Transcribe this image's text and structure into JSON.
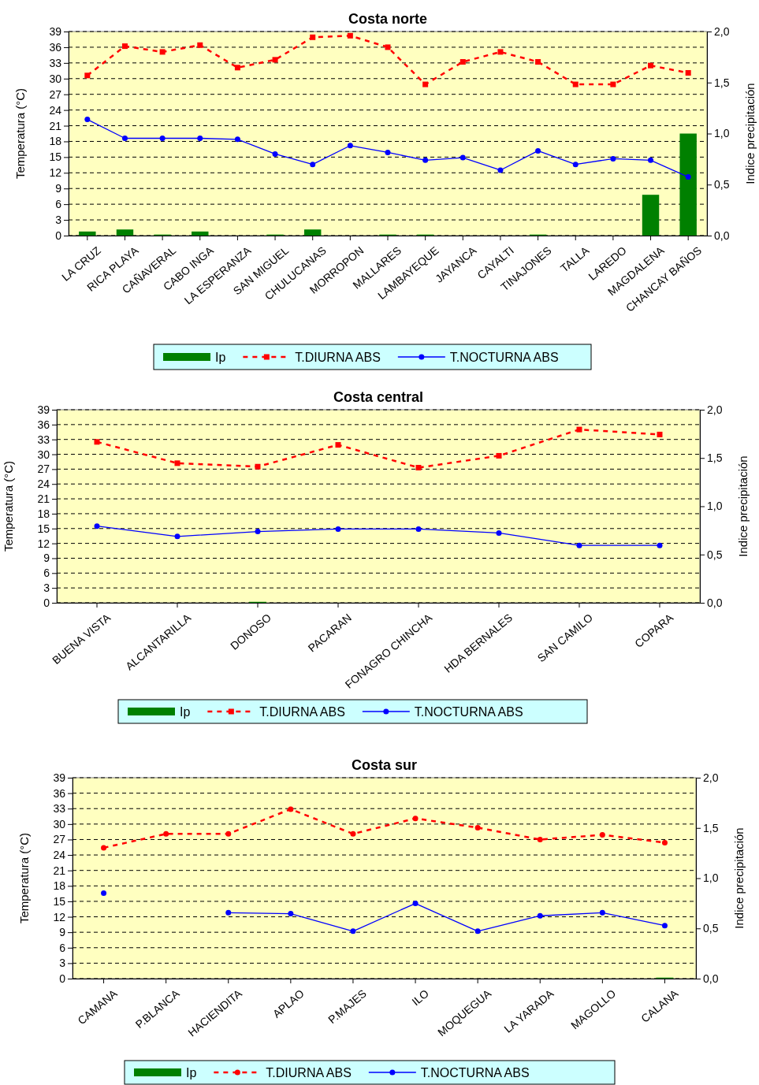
{
  "chart_data": [
    {
      "type": "line",
      "title": "Costa norte",
      "ylabel": "Temperatura (°C)",
      "y2label": "Indice precipitación",
      "categories": [
        "LA CRUZ",
        "RICA PLAYA",
        "CAÑAVERAL",
        "CABO INGA",
        "LA ESPERANZA",
        "SAN MIGUEL",
        "CHULUCANAS",
        "MORROPON",
        "MALLARES",
        "LAMBAYEQUE",
        "JAYANCA",
        "CAYALTI",
        "TINAJONES",
        "TALLA",
        "LAREDO",
        "MAGDALENA",
        "CHANCAY BAÑOS"
      ],
      "series": [
        {
          "name": "Ip",
          "type": "bar",
          "axis": "y2",
          "color": "#008000",
          "values": [
            0.04,
            0.06,
            0.01,
            0.04,
            0,
            0.01,
            0.06,
            0,
            0.01,
            0.01,
            0,
            0,
            0.01,
            0,
            0,
            0.4,
            1.0
          ]
        },
        {
          "name": "T.DIURNA ABS",
          "color": "#ff0000",
          "marker": "square",
          "line_style": "dashed",
          "values": [
            30.6,
            36.2,
            35.1,
            36.4,
            32.1,
            33.6,
            37.9,
            38.2,
            36,
            28.9,
            33.2,
            35.1,
            33.2,
            28.9,
            28.9,
            32.5,
            31.1
          ]
        },
        {
          "name": "T.NOCTURNA ABS",
          "color": "#0000ff",
          "marker": "circle",
          "line_style": "solid",
          "values": [
            22.2,
            18.6,
            18.6,
            18.6,
            18.4,
            15.6,
            13.6,
            17.2,
            15.9,
            14.4,
            14.9,
            12.5,
            16.2,
            13.6,
            14.7,
            14.4,
            11.2
          ]
        }
      ],
      "ylim": [
        0,
        39
      ],
      "yticks": [
        0,
        3,
        6,
        9,
        12,
        15,
        18,
        21,
        24,
        27,
        30,
        33,
        36,
        39
      ],
      "y2lim": [
        0,
        2
      ],
      "y2ticks": [
        {
          "value": 0,
          "label": "0,0"
        },
        {
          "value": 0.5,
          "label": "0,5"
        },
        {
          "value": 1,
          "label": "1,0"
        },
        {
          "value": 1.5,
          "label": "1,5"
        },
        {
          "value": 2,
          "label": "2,0"
        }
      ],
      "grid": "y",
      "legend": "bottom"
    },
    {
      "type": "line",
      "title": "Costa central",
      "ylabel": "Temperatura (°C)",
      "y2label": "Indice precipitación",
      "categories": [
        "BUENA VISTA",
        "ALCANTARILLA",
        "DONOSO",
        "PACARAN",
        "FONAGRO CHINCHA",
        "HDA BERNALES",
        "SAN CAMILO",
        "COPARA"
      ],
      "series": [
        {
          "name": "Ip",
          "type": "bar",
          "axis": "y2",
          "color": "#008000",
          "values": [
            0,
            0,
            0.01,
            0,
            0,
            0,
            0,
            0
          ]
        },
        {
          "name": "T.DIURNA ABS",
          "color": "#ff0000",
          "marker": "square",
          "line_style": "dashed",
          "values": [
            32.5,
            28.2,
            27.5,
            31.9,
            27.3,
            29.7,
            35.0,
            34.0
          ]
        },
        {
          "name": "T.NOCTURNA ABS",
          "color": "#0000ff",
          "marker": "circle",
          "line_style": "solid",
          "values": [
            15.5,
            13.4,
            14.4,
            14.9,
            14.9,
            14.1,
            11.6,
            11.6
          ]
        }
      ],
      "ylim": [
        0,
        39
      ],
      "yticks": [
        0,
        3,
        6,
        9,
        12,
        15,
        18,
        21,
        24,
        27,
        30,
        33,
        36,
        39
      ],
      "y2lim": [
        0,
        2
      ],
      "y2ticks": [
        {
          "value": 0,
          "label": "0,0"
        },
        {
          "value": 0.5,
          "label": "0,5"
        },
        {
          "value": 1,
          "label": "1,0"
        },
        {
          "value": 1.5,
          "label": "1,5"
        },
        {
          "value": 2,
          "label": "2,0"
        }
      ],
      "grid": "y",
      "legend": "bottom"
    },
    {
      "type": "line",
      "title": "Costa sur",
      "ylabel": "Temperatura (°C)",
      "y2label": "Indice precipitación",
      "categories": [
        "CAMANA",
        "P.BLANCA",
        "HACIENDITA",
        "APLAO",
        "P.MAJES",
        "ILO",
        "MOQUEGUA",
        "LA YARADA",
        "MAGOLLO",
        "CALANA"
      ],
      "series": [
        {
          "name": "Ip",
          "type": "bar",
          "axis": "y2",
          "color": "#008000",
          "values": [
            0,
            0,
            0,
            0,
            0,
            0,
            0,
            0,
            0,
            0.01
          ]
        },
        {
          "name": "T.DIURNA ABS",
          "color": "#ff0000",
          "marker": "circle",
          "line_style": "dashed",
          "values": [
            25.4,
            28.1,
            28.1,
            32.9,
            28.1,
            31.1,
            29.3,
            27.0,
            27.9,
            26.4
          ]
        },
        {
          "name": "T.NOCTURNA ABS",
          "color": "#0000ff",
          "marker": "circle",
          "line_style": "solid",
          "values": [
            16.6,
            null,
            12.8,
            12.6,
            9.2,
            14.6,
            9.2,
            12.2,
            12.8,
            10.3
          ]
        }
      ],
      "ylim": [
        0,
        39
      ],
      "yticks": [
        0,
        3,
        6,
        9,
        12,
        15,
        18,
        21,
        24,
        27,
        30,
        33,
        36,
        39
      ],
      "y2lim": [
        0,
        2
      ],
      "y2ticks": [
        {
          "value": 0,
          "label": "0,0"
        },
        {
          "value": 0.5,
          "label": "0,5"
        },
        {
          "value": 1,
          "label": "1,0"
        },
        {
          "value": 1.5,
          "label": "1,5"
        },
        {
          "value": 2,
          "label": "2,0"
        }
      ],
      "grid": "y",
      "legend": "bottom"
    }
  ]
}
